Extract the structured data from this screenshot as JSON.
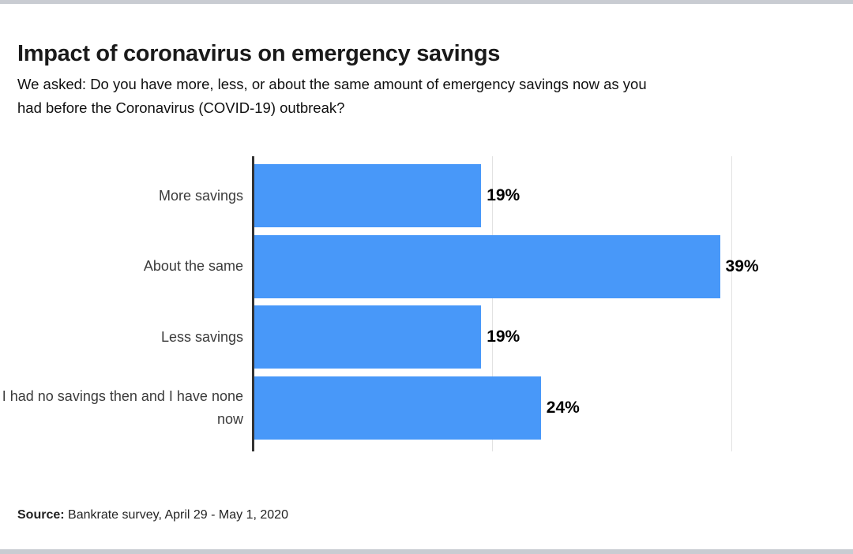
{
  "page": {
    "title": "Impact of coronavirus on emergency savings",
    "subtitle_lines": [
      "We asked: Do you have more, less, or about the same amount of emergency savings now as you",
      "had before the Coronavirus (COVID-19) outbreak?"
    ],
    "source_label": "Source:",
    "source_text": " Bankrate survey, April 29 - May 1, 2020"
  },
  "chart_data": {
    "type": "bar",
    "orientation": "horizontal",
    "title": "Impact of coronavirus on emergency savings",
    "subtitle": "We asked: Do you have more, less, or about the same amount of emergency savings now as you had before the Coronavirus (COVID-19) outbreak?",
    "categories": [
      "More savings",
      "About the same",
      "Less savings",
      "I had no savings then and I have none now"
    ],
    "values": [
      19,
      39,
      19,
      24
    ],
    "value_labels": [
      "19%",
      "39%",
      "19%",
      "24%"
    ],
    "xlabel": "",
    "ylabel": "",
    "xlim": [
      0,
      43
    ],
    "gridlines_at": [
      20,
      40
    ],
    "grid": "vertical-light",
    "legend": "none",
    "bar_color": "#4898f9",
    "gridline_color": "#e2e2e2",
    "axis_color": "#333333",
    "source": "Bankrate survey, April 29 - May 1, 2020"
  },
  "colors": {
    "edge_strip": "#c9ccd2",
    "title_text": "#1a1a1a",
    "subtitle_text": "#101010",
    "category_text": "#3b3b3b",
    "value_text": "#000000"
  }
}
